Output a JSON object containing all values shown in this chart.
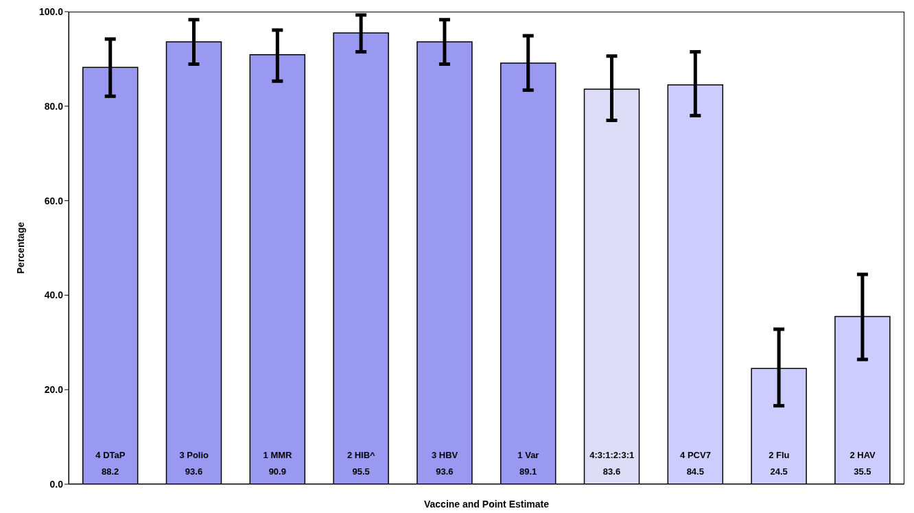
{
  "chart_data": {
    "type": "bar",
    "xlabel": "Vaccine and Point Estimate",
    "ylabel": "Percentage",
    "categories": [
      "4 DTaP",
      "3 Polio",
      "1 MMR",
      "2 HIB^",
      "3 HBV",
      "1 Var",
      "4:3:1:2:3:1",
      "4 PCV7",
      "2 Flu",
      "2 HAV"
    ],
    "values": [
      88.2,
      93.6,
      90.9,
      95.5,
      93.6,
      89.1,
      83.6,
      84.5,
      24.5,
      35.5
    ],
    "colors": [
      "#9999f2",
      "#9999f2",
      "#9999f2",
      "#9999f2",
      "#9999f2",
      "#9999f2",
      "#dcdcf6",
      "#ccccff",
      "#ccccff",
      "#ccccff"
    ],
    "errors": [
      [
        82.1,
        94.2
      ],
      [
        88.9,
        98.3
      ],
      [
        85.3,
        96.1
      ],
      [
        91.5,
        99.3
      ],
      [
        88.9,
        98.3
      ],
      [
        83.4,
        94.9
      ],
      [
        77.0,
        90.6
      ],
      [
        78.0,
        91.5
      ],
      [
        16.6,
        32.8
      ],
      [
        26.4,
        44.4
      ]
    ],
    "data_labels": true,
    "ylim": [
      0,
      100
    ],
    "yticks": [
      {
        "value": 0,
        "label": "0.0"
      },
      {
        "value": 20,
        "label": "20.0"
      },
      {
        "value": 40,
        "label": "40.0"
      },
      {
        "value": 60,
        "label": "60.0"
      },
      {
        "value": 80,
        "label": "80.0"
      },
      {
        "value": 100,
        "label": "100.0"
      }
    ],
    "grid": false
  }
}
